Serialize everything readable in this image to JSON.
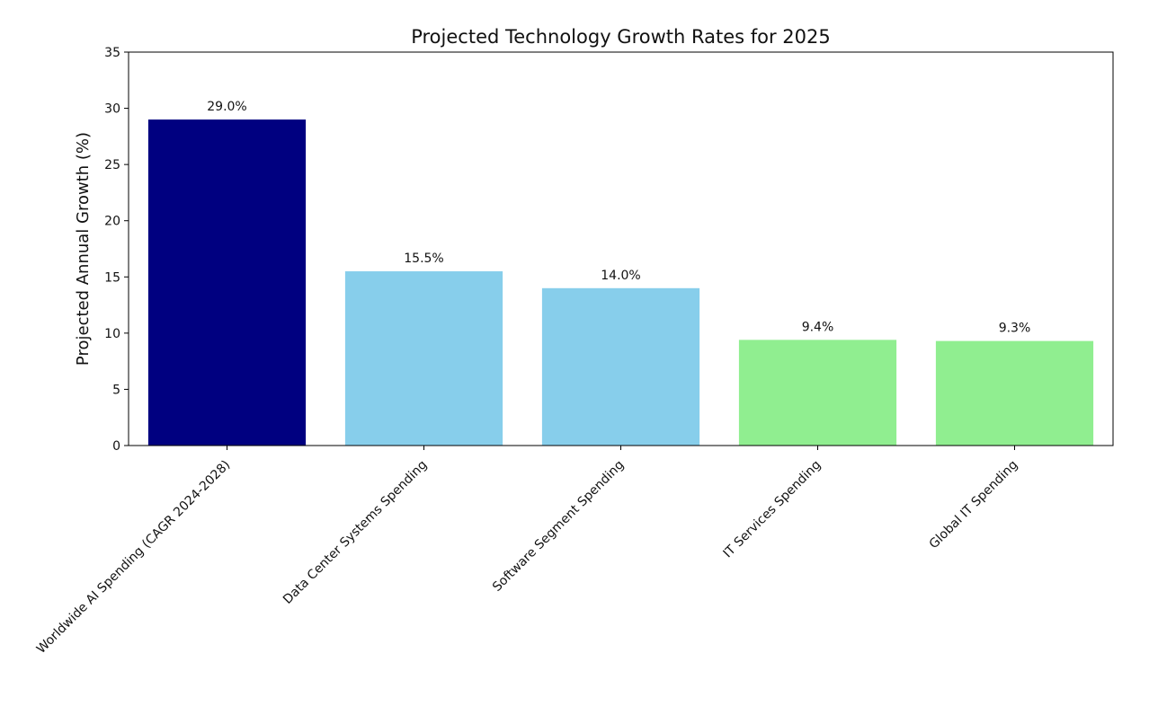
{
  "chart_data": {
    "type": "bar",
    "title": "Projected Technology Growth Rates for 2025",
    "xlabel": "",
    "ylabel": "Projected Annual Growth (%)",
    "ylim": [
      0,
      35
    ],
    "yticks": [
      0,
      5,
      10,
      15,
      20,
      25,
      30,
      35
    ],
    "grid": false,
    "categories": [
      "Worldwide AI Spending (CAGR 2024-2028)",
      "Data Center Systems Spending",
      "Software Segment Spending",
      "IT Services Spending",
      "Global IT Spending"
    ],
    "values": [
      29.0,
      15.5,
      14.0,
      9.4,
      9.3
    ],
    "value_labels": [
      "29.0%",
      "15.5%",
      "14.0%",
      "9.4%",
      "9.3%"
    ],
    "colors": [
      "#000080",
      "#87ceeb",
      "#87ceeb",
      "#90ee90",
      "#90ee90"
    ]
  }
}
